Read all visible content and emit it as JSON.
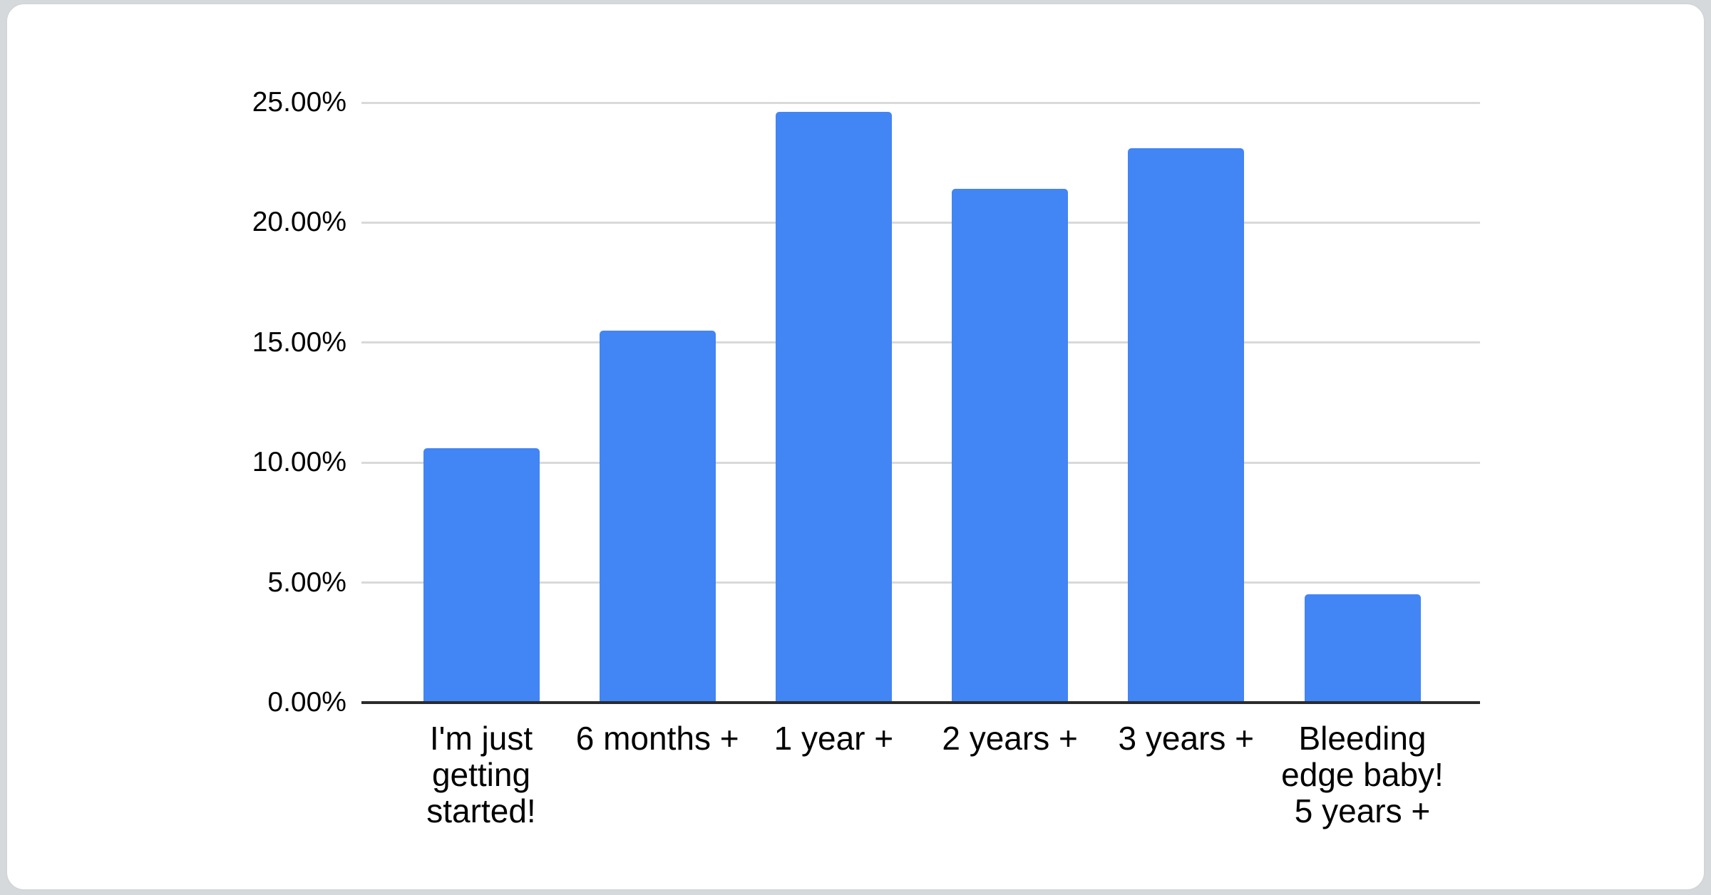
{
  "chart_data": {
    "type": "bar",
    "title": "",
    "xlabel": "",
    "ylabel": "",
    "categories": [
      "I'm just\ngetting\nstarted!",
      "6 months +",
      "1 year +",
      "2 years +",
      "3 years +",
      "Bleeding\nedge baby!\n5 years +"
    ],
    "values": [
      10.6,
      15.5,
      24.6,
      21.4,
      23.1,
      4.5
    ],
    "value_unit": "percent",
    "ylim": [
      0,
      25
    ],
    "y_ticks": [
      {
        "label": "25.00%",
        "value": 25
      },
      {
        "label": "20.00%",
        "value": 20
      },
      {
        "label": "15.00%",
        "value": 15
      },
      {
        "label": "10.00%",
        "value": 10
      },
      {
        "label": "5.00%",
        "value": 5
      },
      {
        "label": "0.00%",
        "value": 0
      }
    ],
    "grid": true,
    "legend": "none",
    "colors": {
      "bar": "#4285f4",
      "axis_line": "#2b2b2b",
      "gridline": "#d9d9d9",
      "label_text": "#000000",
      "page_background": "#d6d9dc",
      "card_background": "#ffffff"
    }
  }
}
